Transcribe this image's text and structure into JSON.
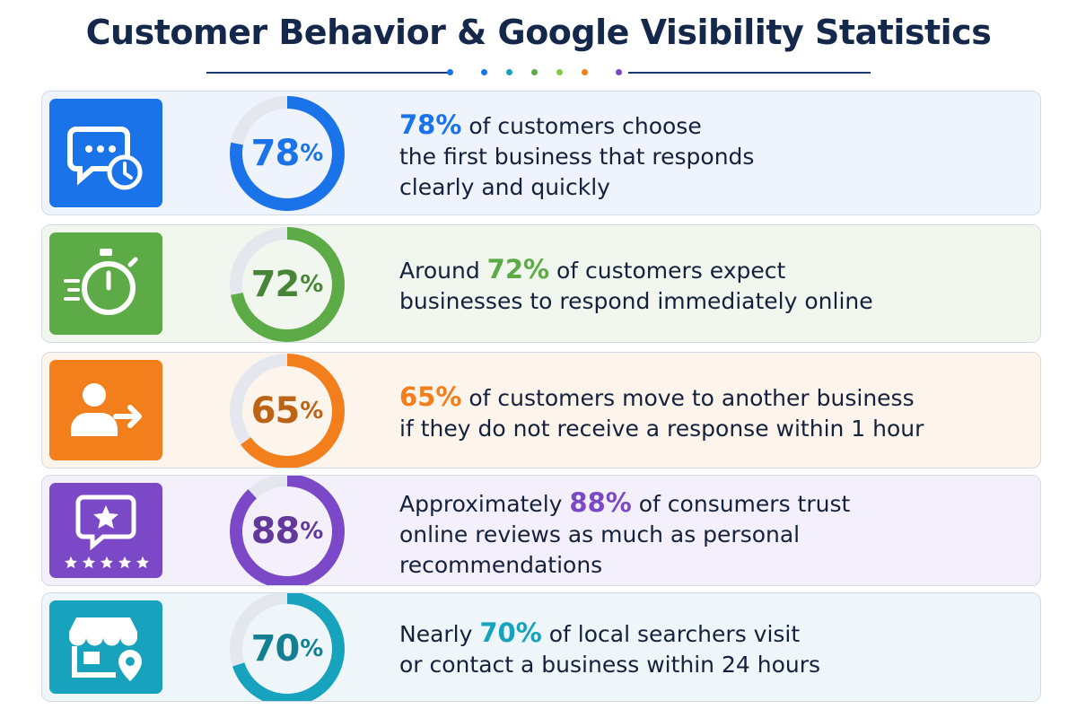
{
  "title": "Customer Behavior & Google Visibility Statistics",
  "colors": {
    "blue": "#1a73e8",
    "green": "#5cab46",
    "orange": "#f27f1b",
    "purple": "#7b49c7",
    "teal": "#17a3bd"
  },
  "chart_data": {
    "type": "donut",
    "title": "Customer Behavior & Google Visibility Statistics",
    "unit": "%",
    "ylim": [
      0,
      100
    ],
    "items": [
      {
        "value": 78,
        "color": "#1a73e8",
        "icon": "chat-clock-icon",
        "line1": {
          "pre": "",
          "highlight": "78%",
          "post": " of customers choose"
        },
        "lines": [
          "the first business that responds",
          "clearly and quickly"
        ]
      },
      {
        "value": 72,
        "color": "#5cab46",
        "icon": "stopwatch-icon",
        "line1": {
          "pre": "Around ",
          "highlight": "72%",
          "post": " of customers expect"
        },
        "lines": [
          "businesses to respond immediately online"
        ]
      },
      {
        "value": 65,
        "color": "#f27f1b",
        "icon": "user-exit-icon",
        "line1": {
          "pre": "",
          "highlight": "65%",
          "post": " of customers move to another business"
        },
        "lines": [
          "if they do not receive a response within 1 hour"
        ]
      },
      {
        "value": 88,
        "color": "#7b49c7",
        "icon": "review-stars-icon",
        "line1": {
          "pre": "Approximately ",
          "highlight": "88%",
          "post": " of consumers trust"
        },
        "lines": [
          "online reviews as much as personal",
          "recommendations"
        ]
      },
      {
        "value": 70,
        "color": "#17a3bd",
        "icon": "storefront-pin-icon",
        "line1": {
          "pre": "Nearly ",
          "highlight": "70%",
          "post": " of local searchers visit"
        },
        "lines": [
          "or contact a business within 24 hours"
        ]
      }
    ]
  }
}
